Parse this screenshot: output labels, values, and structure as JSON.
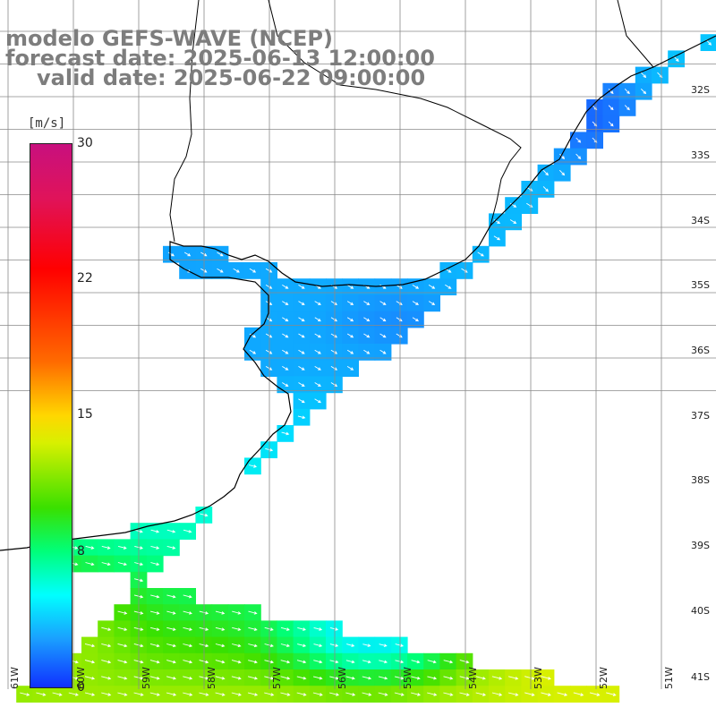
{
  "title": {
    "line1": "modelo GEFS-WAVE (NCEP)",
    "line2": "forecast date: 2025-06-13 12:00:00",
    "line3": "valid date: 2025-06-22 09:00:00"
  },
  "colorbar": {
    "units": "[m/s]",
    "ticks": [
      "30",
      "22",
      "15",
      "8",
      "0"
    ],
    "range": [
      0,
      30
    ]
  },
  "axes": {
    "lat_labels": [
      "32S",
      "33S",
      "34S",
      "35S",
      "36S",
      "37S",
      "38S",
      "39S",
      "40S",
      "41S"
    ],
    "lon_labels": [
      "61W",
      "60W",
      "59W",
      "58W",
      "57W",
      "56W",
      "55W",
      "54W",
      "53W",
      "52W",
      "51W"
    ]
  },
  "colors": {
    "low": "#1030ff",
    "mid": "#00ffff",
    "high": "#ffd700",
    "land": "#ffffff",
    "grid": "#8a8a8a",
    "coast": "#000000"
  }
}
